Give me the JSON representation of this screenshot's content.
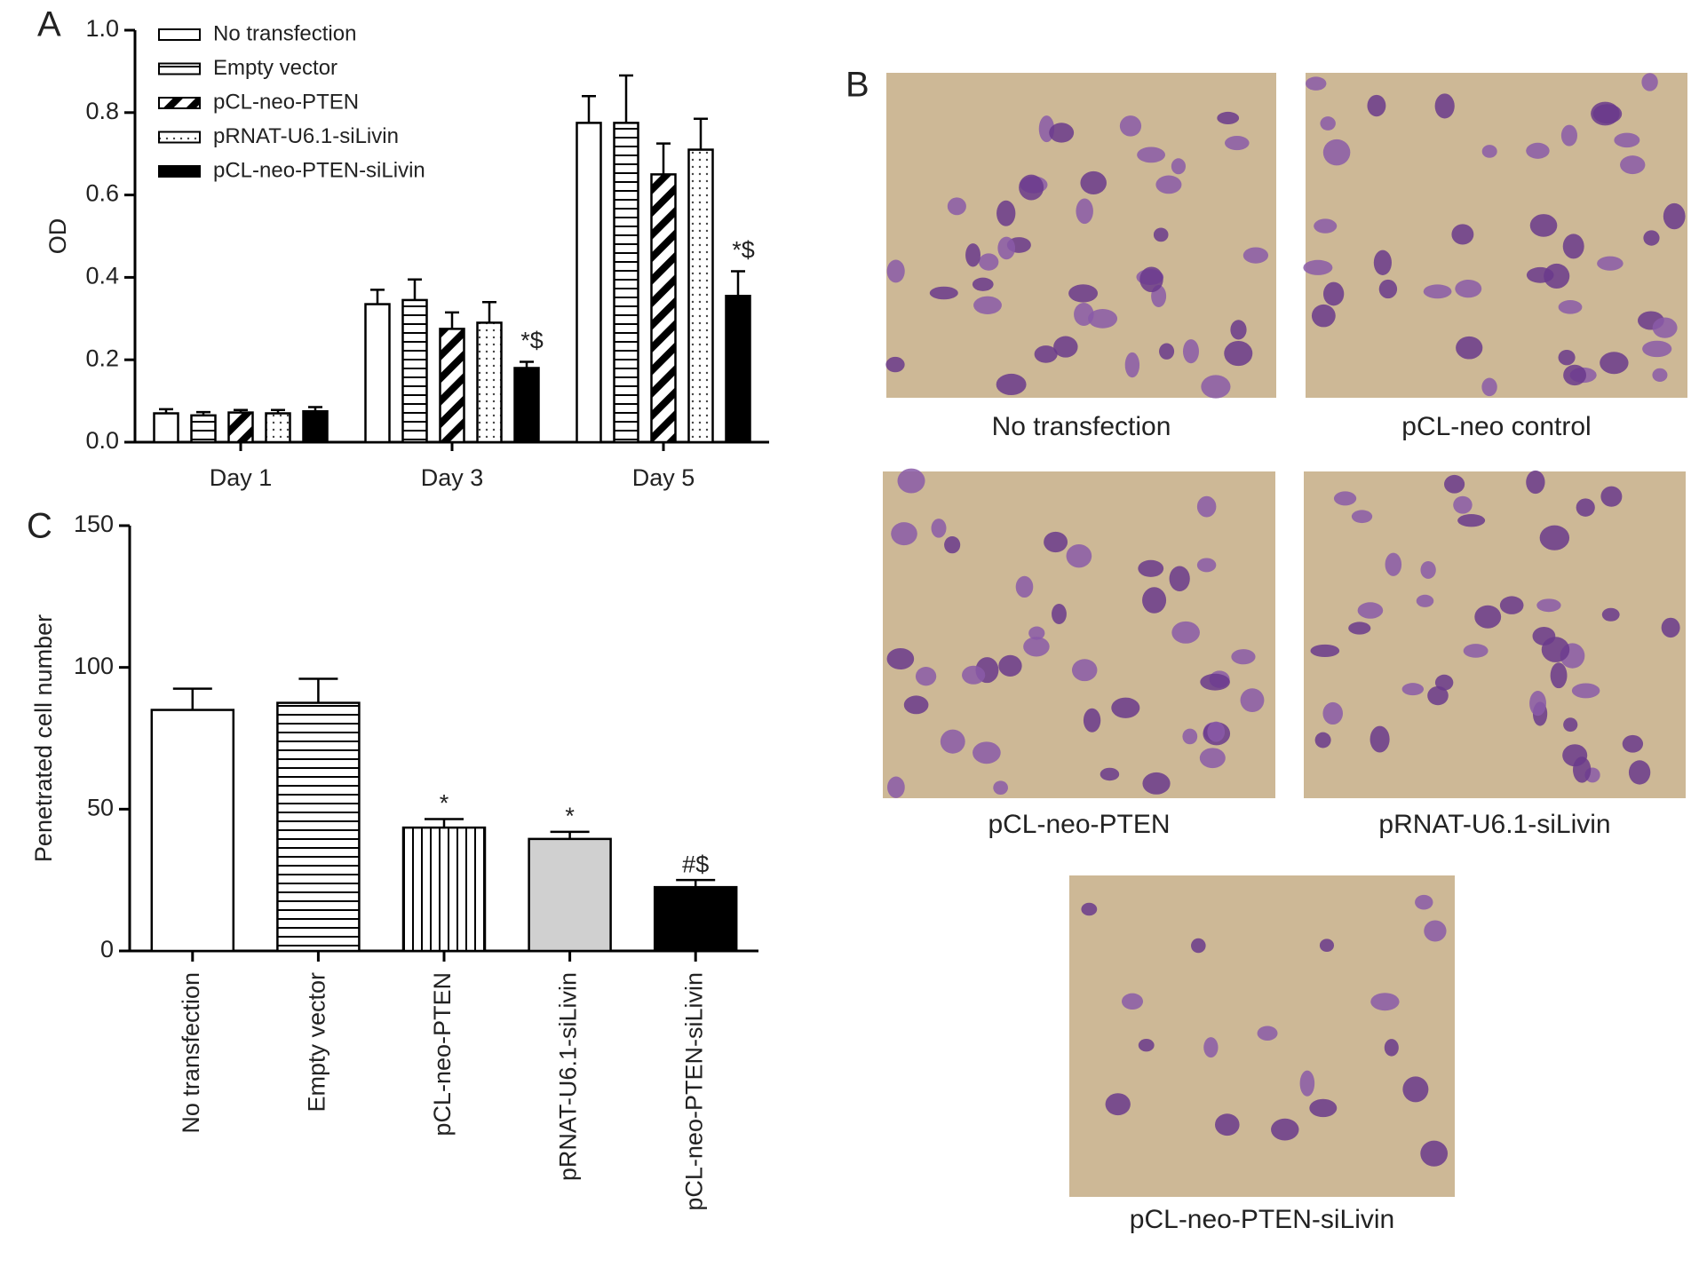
{
  "chart_data": [
    {
      "type": "bar",
      "panel": "A",
      "ylabel": "OD",
      "categories": [
        "Day 1",
        "Day 3",
        "Day 5"
      ],
      "series": [
        {
          "name": "No transfection",
          "color": "#ffffff",
          "pattern": "none",
          "values": [
            0.07,
            0.335,
            0.775
          ],
          "errors": [
            0.01,
            0.035,
            0.065
          ],
          "annotations": [
            null,
            null,
            null
          ]
        },
        {
          "name": "Empty vector",
          "color": "#ffffff",
          "pattern": "horizontal",
          "values": [
            0.065,
            0.345,
            0.775
          ],
          "errors": [
            0.008,
            0.05,
            0.115
          ],
          "annotations": [
            null,
            null,
            null
          ]
        },
        {
          "name": "pCL-neo-PTEN",
          "color": "#ffffff",
          "pattern": "diagonal",
          "values": [
            0.072,
            0.275,
            0.65
          ],
          "errors": [
            0.006,
            0.04,
            0.075
          ],
          "annotations": [
            null,
            null,
            null
          ]
        },
        {
          "name": "pRNAT-U6.1-siLivin",
          "color": "#ffffff",
          "pattern": "dots",
          "values": [
            0.07,
            0.29,
            0.71
          ],
          "errors": [
            0.008,
            0.05,
            0.075
          ],
          "annotations": [
            null,
            null,
            null
          ]
        },
        {
          "name": "pCL-neo-PTEN-siLivin",
          "color": "#000000",
          "pattern": "none",
          "values": [
            0.075,
            0.18,
            0.355
          ],
          "errors": [
            0.01,
            0.015,
            0.06
          ],
          "annotations": [
            null,
            "*$",
            "*$"
          ]
        }
      ],
      "ylim": [
        0,
        1
      ],
      "yticks": [
        {
          "value": 0,
          "label": "0.0"
        },
        0.2,
        0.4,
        0.6,
        0.8,
        {
          "value": 1,
          "label": "1.0"
        }
      ],
      "legend": "top-left"
    },
    {
      "type": "bar",
      "panel": "C",
      "ylabel": "Penetrated cell number",
      "categories": [
        "No transfection",
        "Empty vector",
        "pCL-neo-PTEN",
        "pRNAT-U6.1-siLivin",
        "pCL-neo-PTEN-siLivin"
      ],
      "values": [
        85,
        87.5,
        43.5,
        39.5,
        22.5
      ],
      "errors": [
        7.5,
        8.5,
        3,
        2.5,
        2.5
      ],
      "colors": [
        "#ffffff",
        "#ffffff",
        "#ffffff",
        "#d0d0d0",
        "#000000"
      ],
      "patterns": [
        "none",
        "horizontal",
        "vertical",
        "none",
        "none"
      ],
      "annotations": [
        null,
        null,
        "*",
        "*",
        "#$"
      ],
      "ylim": [
        0,
        150
      ],
      "yticks": [
        0,
        50,
        100,
        150
      ]
    }
  ],
  "panel_b": {
    "label": "B",
    "captions": [
      "No transfection",
      "pCL-neo control",
      "pCL-neo-PTEN",
      "pRNAT-U6.1-siLivin",
      "pCL-neo-PTEN-siLivin"
    ]
  }
}
